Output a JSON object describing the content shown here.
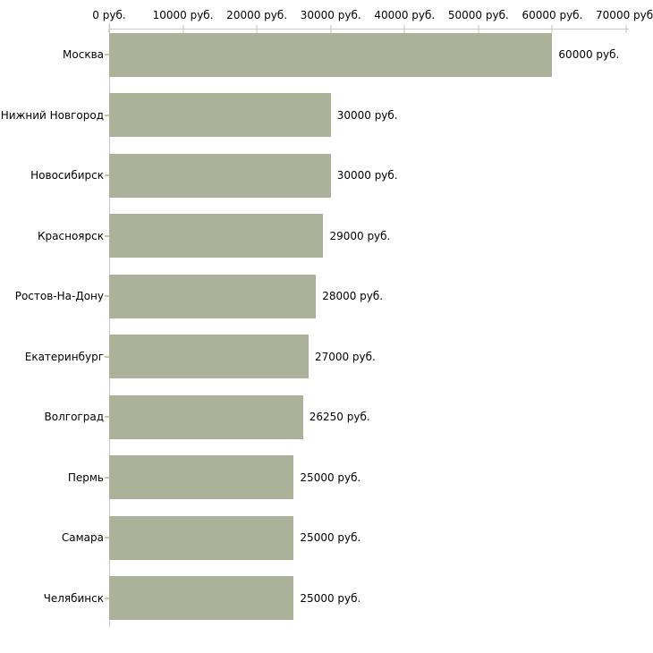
{
  "chart_data": {
    "type": "bar",
    "orientation": "horizontal",
    "title": "",
    "xlabel": "",
    "ylabel": "",
    "currency_suffix": "руб.",
    "categories": [
      "Москва",
      "Нижний Новгород",
      "Новосибирск",
      "Красноярск",
      "Ростов-На-Дону",
      "Екатеринбург",
      "Волгоград",
      "Пермь",
      "Самара",
      "Челябинск"
    ],
    "values": [
      60000,
      30000,
      30000,
      29000,
      28000,
      27000,
      26250,
      25000,
      25000,
      25000
    ],
    "value_labels": [
      "60000 руб.",
      "30000 руб.",
      "30000 руб.",
      "29000 руб.",
      "28000 руб.",
      "27000 руб.",
      "26250 руб.",
      "25000 руб.",
      "25000 руб.",
      "25000 руб."
    ],
    "x_ticks": [
      0,
      10000,
      20000,
      30000,
      40000,
      50000,
      60000,
      70000
    ],
    "x_tick_labels": [
      "0 руб.",
      "10000 руб.",
      "20000 руб.",
      "30000 руб.",
      "40000 руб.",
      "50000 руб.",
      "60000 руб.",
      "70000 руб."
    ],
    "xlim": [
      0,
      70000
    ],
    "grid": false,
    "legend": null,
    "axis_position": "top",
    "colors": {
      "bar": "#acb199",
      "axis_line": "#c9c9c9",
      "axis_tick": "#c7c7a0",
      "text": "#000000",
      "background": "#ffffff"
    }
  }
}
